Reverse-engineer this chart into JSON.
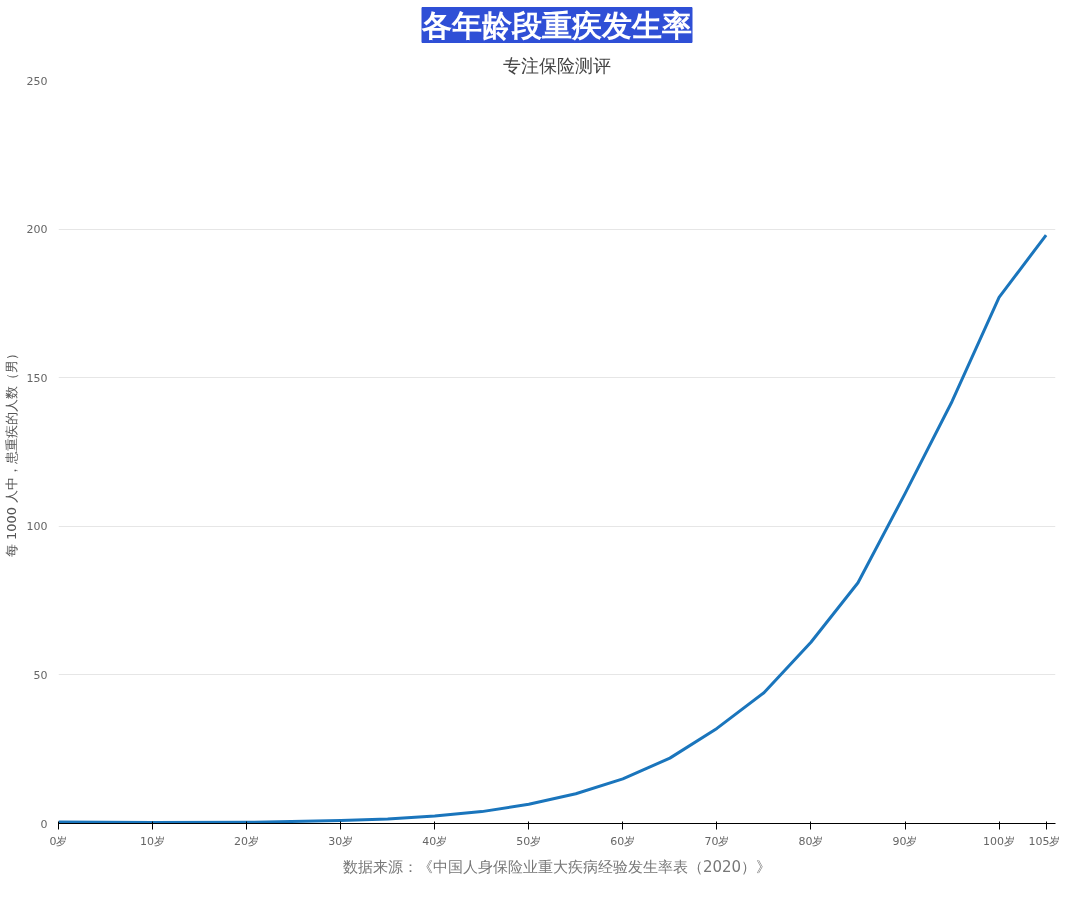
{
  "chart_data": {
    "type": "line",
    "title": "各年龄段重疾发生率",
    "subtitle": "专注保险测评",
    "ylabel": "每 1000 人中，患重疾的人数（男）",
    "annotations": [
      "数据来源：《中国人身保险业重大疾病经验发生率表（2020）》"
    ],
    "x": [
      0,
      10,
      20,
      30,
      35,
      40,
      45,
      50,
      55,
      60,
      65,
      70,
      75,
      80,
      85,
      90,
      95,
      100,
      105
    ],
    "series": [
      {
        "color": "#1a75bc",
        "values": [
          0.5,
          0.3,
          0.4,
          1,
          1.5,
          2.5,
          4,
          6.5,
          10,
          15,
          22,
          32,
          44,
          61,
          81,
          111,
          142,
          177,
          198
        ]
      }
    ],
    "xlim": [
      0,
      106
    ],
    "ylim": [
      0,
      250
    ],
    "xticks": [
      {
        "value": 0,
        "label": "0岁"
      },
      {
        "value": 10,
        "label": "10岁"
      },
      {
        "value": 20,
        "label": "20岁"
      },
      {
        "value": 30,
        "label": "30岁"
      },
      {
        "value": 40,
        "label": "40岁"
      },
      {
        "value": 50,
        "label": "50岁"
      },
      {
        "value": 60,
        "label": "60岁"
      },
      {
        "value": 70,
        "label": "70岁"
      },
      {
        "value": 80,
        "label": "80岁"
      },
      {
        "value": 90,
        "label": "90岁"
      },
      {
        "value": 100,
        "label": "100岁"
      },
      {
        "value": 105,
        "label": "105岁"
      }
    ],
    "yticks": [
      0,
      50,
      100,
      150,
      200,
      250
    ],
    "grid": "y",
    "marker": "none",
    "line_style": "solid"
  }
}
